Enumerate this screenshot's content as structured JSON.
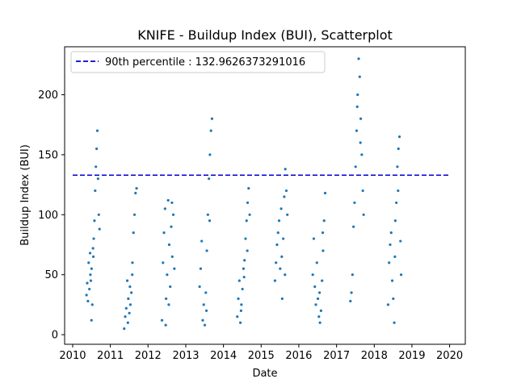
{
  "chart_data": {
    "type": "scatter",
    "title": "KNIFE - Buildup Index (BUI), Scatterplot",
    "xlabel": "Date",
    "ylabel": "Buildup Index (BUI)",
    "x_ticks": [
      "2010",
      "2011",
      "2012",
      "2013",
      "2014",
      "2015",
      "2016",
      "2017",
      "2018",
      "2019",
      "2020"
    ],
    "y_ticks": [
      0,
      50,
      100,
      150,
      200
    ],
    "xlim": [
      "2009-10-15",
      "2020-06-01"
    ],
    "ylim": [
      -8,
      240
    ],
    "grid": false,
    "legend_position": "top-left",
    "series": [
      {
        "type": "scatter",
        "color": "#1f77b4",
        "seasons": [
          {
            "year": 2010,
            "points": [
              [
                "2010-05-15",
                33
              ],
              [
                "2010-05-22",
                43
              ],
              [
                "2010-05-29",
                28
              ],
              [
                "2010-06-05",
                60
              ],
              [
                "2010-06-12",
                38
              ],
              [
                "2010-06-19",
                68
              ],
              [
                "2010-06-26",
                45
              ],
              [
                "2010-07-03",
                55
              ],
              [
                "2010-07-10",
                25
              ],
              [
                "2010-07-17",
                72
              ],
              [
                "2010-07-24",
                80
              ],
              [
                "2010-07-31",
                95
              ],
              [
                "2010-08-07",
                120
              ],
              [
                "2010-08-14",
                140
              ],
              [
                "2010-08-21",
                155
              ],
              [
                "2010-08-28",
                170
              ],
              [
                "2010-09-04",
                130
              ],
              [
                "2010-09-11",
                100
              ],
              [
                "2010-09-18",
                88
              ],
              [
                "2010-07-02",
                12
              ],
              [
                "2010-06-22",
                50
              ],
              [
                "2010-07-20",
                65
              ]
            ]
          },
          {
            "year": 2011,
            "points": [
              [
                "2011-05-15",
                5
              ],
              [
                "2011-05-25",
                15
              ],
              [
                "2011-06-04",
                22
              ],
              [
                "2011-06-14",
                45
              ],
              [
                "2011-06-24",
                30
              ],
              [
                "2011-07-04",
                18
              ],
              [
                "2011-07-14",
                25
              ],
              [
                "2011-07-24",
                35
              ],
              [
                "2011-08-03",
                60
              ],
              [
                "2011-08-13",
                85
              ],
              [
                "2011-08-23",
                100
              ],
              [
                "2011-09-02",
                118
              ],
              [
                "2011-09-12",
                122
              ],
              [
                "2011-06-20",
                10
              ],
              [
                "2011-07-10",
                40
              ],
              [
                "2011-08-01",
                50
              ]
            ]
          },
          {
            "year": 2012,
            "points": [
              [
                "2012-05-15",
                12
              ],
              [
                "2012-05-25",
                60
              ],
              [
                "2012-06-04",
                85
              ],
              [
                "2012-06-14",
                105
              ],
              [
                "2012-06-24",
                30
              ],
              [
                "2012-07-04",
                50
              ],
              [
                "2012-07-14",
                112
              ],
              [
                "2012-07-24",
                75
              ],
              [
                "2012-08-03",
                40
              ],
              [
                "2012-08-13",
                90
              ],
              [
                "2012-08-23",
                65
              ],
              [
                "2012-09-02",
                100
              ],
              [
                "2012-09-12",
                55
              ],
              [
                "2012-06-20",
                8
              ],
              [
                "2012-07-20",
                25
              ],
              [
                "2012-08-20",
                110
              ]
            ]
          },
          {
            "year": 2013,
            "points": [
              [
                "2013-05-15",
                40
              ],
              [
                "2013-05-25",
                55
              ],
              [
                "2013-06-04",
                78
              ],
              [
                "2013-06-14",
                12
              ],
              [
                "2013-06-24",
                25
              ],
              [
                "2013-07-04",
                8
              ],
              [
                "2013-07-14",
                35
              ],
              [
                "2013-07-24",
                70
              ],
              [
                "2013-08-03",
                100
              ],
              [
                "2013-08-13",
                130
              ],
              [
                "2013-08-23",
                150
              ],
              [
                "2013-09-02",
                170
              ],
              [
                "2013-09-12",
                180
              ],
              [
                "2013-07-20",
                20
              ],
              [
                "2013-08-20",
                95
              ]
            ]
          },
          {
            "year": 2014,
            "points": [
              [
                "2014-05-15",
                15
              ],
              [
                "2014-05-25",
                30
              ],
              [
                "2014-06-04",
                45
              ],
              [
                "2014-06-14",
                10
              ],
              [
                "2014-06-24",
                25
              ],
              [
                "2014-07-04",
                38
              ],
              [
                "2014-07-14",
                55
              ],
              [
                "2014-07-24",
                62
              ],
              [
                "2014-08-03",
                80
              ],
              [
                "2014-08-13",
                95
              ],
              [
                "2014-08-23",
                110
              ],
              [
                "2014-09-02",
                122
              ],
              [
                "2014-09-12",
                100
              ],
              [
                "2014-06-20",
                20
              ],
              [
                "2014-07-20",
                48
              ],
              [
                "2014-08-20",
                70
              ]
            ]
          },
          {
            "year": 2015,
            "points": [
              [
                "2015-05-15",
                45
              ],
              [
                "2015-05-25",
                60
              ],
              [
                "2015-06-04",
                75
              ],
              [
                "2015-06-14",
                85
              ],
              [
                "2015-06-24",
                95
              ],
              [
                "2015-07-04",
                55
              ],
              [
                "2015-07-14",
                105
              ],
              [
                "2015-07-24",
                30
              ],
              [
                "2015-08-03",
                80
              ],
              [
                "2015-08-13",
                115
              ],
              [
                "2015-08-23",
                138
              ],
              [
                "2015-09-02",
                120
              ],
              [
                "2015-09-12",
                100
              ],
              [
                "2015-07-20",
                65
              ],
              [
                "2015-08-20",
                50
              ]
            ]
          },
          {
            "year": 2016,
            "points": [
              [
                "2016-05-15",
                50
              ],
              [
                "2016-05-25",
                80
              ],
              [
                "2016-06-04",
                40
              ],
              [
                "2016-06-14",
                25
              ],
              [
                "2016-06-24",
                60
              ],
              [
                "2016-07-04",
                30
              ],
              [
                "2016-07-14",
                15
              ],
              [
                "2016-07-24",
                10
              ],
              [
                "2016-08-03",
                20
              ],
              [
                "2016-08-13",
                45
              ],
              [
                "2016-08-23",
                70
              ],
              [
                "2016-09-02",
                95
              ],
              [
                "2016-09-12",
                118
              ],
              [
                "2016-07-20",
                35
              ],
              [
                "2016-08-20",
                85
              ]
            ]
          },
          {
            "year": 2017,
            "points": [
              [
                "2017-05-15",
                28
              ],
              [
                "2017-05-25",
                35
              ],
              [
                "2017-06-04",
                50
              ],
              [
                "2017-06-14",
                90
              ],
              [
                "2017-06-24",
                110
              ],
              [
                "2017-07-04",
                140
              ],
              [
                "2017-07-14",
                170
              ],
              [
                "2017-07-24",
                200
              ],
              [
                "2017-08-03",
                230
              ],
              [
                "2017-08-13",
                215
              ],
              [
                "2017-08-23",
                180
              ],
              [
                "2017-09-02",
                150
              ],
              [
                "2017-09-12",
                120
              ],
              [
                "2017-09-20",
                100
              ],
              [
                "2017-07-20",
                190
              ],
              [
                "2017-08-20",
                160
              ]
            ]
          },
          {
            "year": 2018,
            "points": [
              [
                "2018-05-15",
                25
              ],
              [
                "2018-05-25",
                60
              ],
              [
                "2018-06-04",
                75
              ],
              [
                "2018-06-14",
                85
              ],
              [
                "2018-06-24",
                45
              ],
              [
                "2018-07-04",
                30
              ],
              [
                "2018-07-14",
                10
              ],
              [
                "2018-07-24",
                95
              ],
              [
                "2018-08-03",
                110
              ],
              [
                "2018-08-13",
                140
              ],
              [
                "2018-08-23",
                155
              ],
              [
                "2018-09-02",
                165
              ],
              [
                "2018-09-12",
                78
              ],
              [
                "2018-09-18",
                50
              ],
              [
                "2018-07-20",
                65
              ],
              [
                "2018-08-20",
                120
              ]
            ]
          }
        ]
      },
      {
        "type": "hline",
        "name": "90th percentile : 132.9626373291016",
        "value": 132.9626373291016,
        "color": "#0000cc",
        "x_from": "2010-01-01",
        "x_to": "2020-01-01"
      }
    ]
  }
}
